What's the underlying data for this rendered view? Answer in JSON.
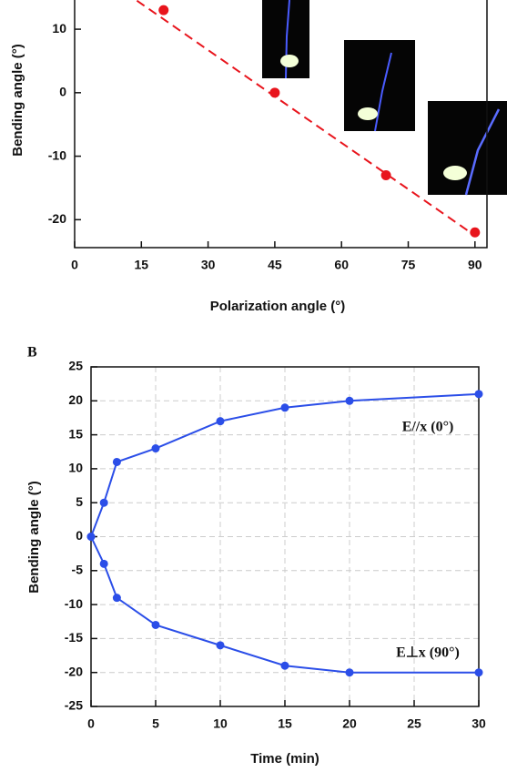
{
  "chart_data": [
    {
      "type": "scatter",
      "y_label": "Bending angle (°)",
      "x_label": "Polarization angle (°)",
      "x": [
        20,
        45,
        70,
        90
      ],
      "values": [
        13,
        0,
        -13,
        -22
      ],
      "color": "#e8141c",
      "fit": {
        "x": [
          14,
          90
        ],
        "values": [
          14.5,
          -22.5
        ]
      },
      "xlim": [
        0,
        92.7
      ],
      "ylim": [
        -24.4,
        14.6
      ],
      "xticks": [
        0,
        15,
        30,
        45,
        60,
        75,
        90
      ],
      "yticks": [
        -20,
        -10,
        0,
        10
      ]
    },
    {
      "type": "line",
      "panel_label": "B",
      "y_label": "Bending angle (°)",
      "x_label": "Time (min)",
      "x": [
        0,
        1,
        2,
        5,
        10,
        15,
        20,
        30
      ],
      "series": [
        {
          "name": "E//x (0°)",
          "color": "#2b4ee8",
          "values": [
            0,
            5,
            11,
            13,
            17,
            19,
            20,
            21
          ]
        },
        {
          "name": "E⊥x (90°)",
          "color": "#2b4ee8",
          "values": [
            0,
            -4,
            -9,
            -13,
            -16,
            -19,
            -20,
            -20
          ]
        }
      ],
      "xlim": [
        0,
        30
      ],
      "ylim": [
        -25,
        25
      ],
      "xticks": [
        0,
        5,
        10,
        15,
        20,
        25,
        30
      ],
      "yticks": [
        -25,
        -20,
        -15,
        -10,
        -5,
        0,
        5,
        10,
        15,
        20,
        25
      ],
      "grid": true
    }
  ]
}
